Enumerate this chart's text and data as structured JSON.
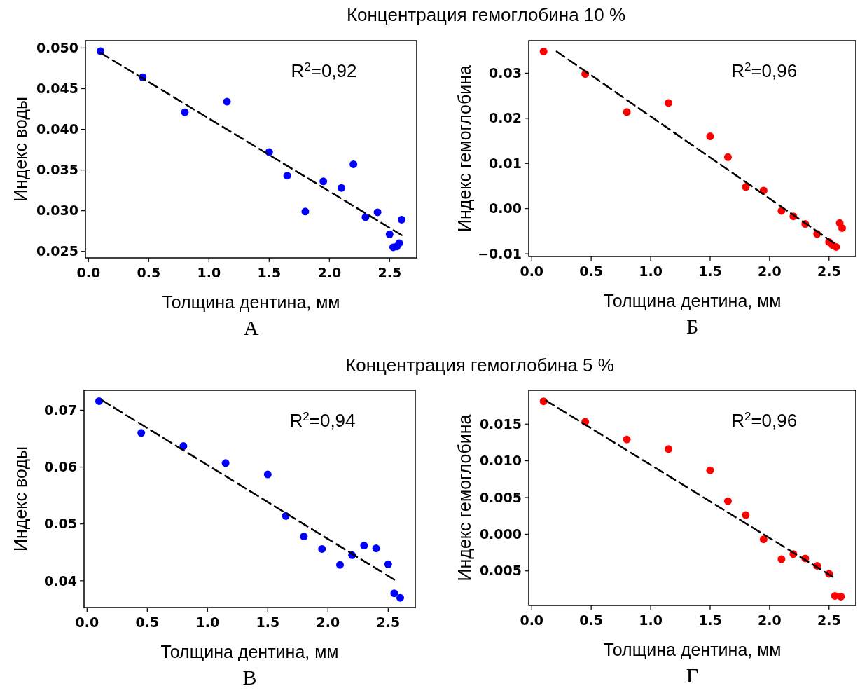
{
  "chart_data": [
    {
      "type": "scatter",
      "title": "Концентрация гемоглобина 10 %",
      "xlabel": "Толщина дентина, мм",
      "ylabel": "Индекс воды",
      "annotations": [
        "R$^{2}$=0,92",
        "А"
      ],
      "xlim": [
        -0.025,
        2.725
      ],
      "ylim": [
        0.0242,
        0.0509
      ],
      "xticks": [
        {
          "value": 0,
          "label": "0.0"
        },
        0.5,
        {
          "value": 1,
          "label": "1.0"
        },
        1.5,
        {
          "value": 2,
          "label": "2.0"
        },
        2.5
      ],
      "yticks": [
        {
          "value": 0.025,
          "label": "0.025"
        },
        {
          "value": 0.03,
          "label": "0.030"
        },
        0.035,
        {
          "value": 0.04,
          "label": "0.040"
        },
        0.045,
        {
          "value": 0.05,
          "label": "0.050"
        }
      ],
      "marker": "circle",
      "series": [
        {
          "color": "#0000ff",
          "x": [
            0.1,
            0.45,
            0.8,
            1.15,
            1.5,
            1.65,
            1.8,
            1.95,
            2.1,
            2.2,
            2.3,
            2.4,
            2.5,
            2.53,
            2.56,
            2.58,
            2.6
          ],
          "values": [
            0.0496,
            0.0464,
            0.0421,
            0.0434,
            0.0372,
            0.0343,
            0.0299,
            0.0336,
            0.0328,
            0.0357,
            0.0292,
            0.0298,
            0.0271,
            0.0255,
            0.0256,
            0.026,
            0.0289
          ]
        },
        {
          "type": "line",
          "color": "#000000",
          "line_style": "dashed",
          "marker": "none",
          "x": [
            0.1,
            2.6
          ],
          "values": [
            0.0494,
            0.027
          ]
        }
      ]
    },
    {
      "type": "scatter",
      "xlabel": "Толщина дентина, мм",
      "ylabel": "Индекс гемоглобина",
      "annotations": [
        "R$^{2}$=0,96",
        "Б"
      ],
      "xlim": [
        -0.025,
        2.725
      ],
      "ylim": [
        -0.0106,
        0.0372
      ],
      "xticks": [
        {
          "value": 0,
          "label": "0.0"
        },
        0.5,
        {
          "value": 1,
          "label": "1.0"
        },
        1.5,
        {
          "value": 2,
          "label": "2.0"
        },
        2.5
      ],
      "yticks": [
        {
          "value": -0.01,
          "label": "−0.01"
        },
        {
          "value": 0,
          "label": "0.00"
        },
        0.01,
        0.02,
        0.03
      ],
      "marker": "circle",
      "series": [
        {
          "color": "#ff0000",
          "x": [
            0.1,
            0.45,
            0.8,
            1.15,
            1.5,
            1.65,
            1.8,
            1.95,
            2.1,
            2.2,
            2.3,
            2.4,
            2.5,
            2.53,
            2.56,
            2.59,
            2.61
          ],
          "values": [
            0.0348,
            0.0298,
            0.0214,
            0.0234,
            0.016,
            0.0114,
            0.0048,
            0.004,
            -0.0005,
            -0.0017,
            -0.0034,
            -0.0056,
            -0.0074,
            -0.0081,
            -0.0085,
            -0.0032,
            -0.0043
          ]
        },
        {
          "type": "line",
          "color": "#000000",
          "line_style": "dashed",
          "marker": "none",
          "x": [
            0.21,
            2.54
          ],
          "values": [
            0.0348,
            -0.0076
          ]
        }
      ]
    },
    {
      "type": "scatter",
      "title": "Концентрация гемоглобина 5 %",
      "xlabel": "Толщина дентина, мм",
      "ylabel": "Индекс воды",
      "annotations": [
        "R$^{2}$=0,94",
        "В"
      ],
      "xlim": [
        -0.025,
        2.725
      ],
      "ylim": [
        0.0353,
        0.0735
      ],
      "xticks": [
        {
          "value": 0,
          "label": "0.0"
        },
        0.5,
        {
          "value": 1,
          "label": "1.0"
        },
        1.5,
        {
          "value": 2,
          "label": "2.0"
        },
        2.5
      ],
      "yticks": [
        0.04,
        0.05,
        0.06,
        0.07
      ],
      "marker": "circle",
      "series": [
        {
          "color": "#0000ff",
          "x": [
            0.1,
            0.45,
            0.8,
            1.15,
            1.5,
            1.65,
            1.8,
            1.95,
            2.1,
            2.2,
            2.3,
            2.4,
            2.5,
            2.55,
            2.6
          ],
          "values": [
            0.0716,
            0.066,
            0.0637,
            0.0607,
            0.0587,
            0.0514,
            0.0478,
            0.0456,
            0.0428,
            0.0445,
            0.0462,
            0.0457,
            0.0429,
            0.0378,
            0.037
          ]
        },
        {
          "type": "line",
          "color": "#000000",
          "line_style": "dashed",
          "marker": "none",
          "x": [
            0.12,
            2.55
          ],
          "values": [
            0.0718,
            0.0402
          ]
        }
      ]
    },
    {
      "type": "scatter",
      "xlabel": "Толщина дентина, мм",
      "ylabel": "Индекс гемоглобина",
      "annotations": [
        "R$^{2}$=0,96",
        "Г"
      ],
      "xlim": [
        -0.025,
        2.725
      ],
      "ylim": [
        -0.0097,
        0.0196
      ],
      "xticks": [
        {
          "value": 0,
          "label": "0.0"
        },
        0.5,
        {
          "value": 1,
          "label": "1.0"
        },
        1.5,
        {
          "value": 2,
          "label": "2.0"
        },
        2.5
      ],
      "yticks": [
        {
          "value": -0.005,
          "label": "0.005"
        },
        {
          "value": 0,
          "label": "0.000"
        },
        {
          "value": 0.005,
          "label": "0.005"
        },
        {
          "value": 0.01,
          "label": "0.010"
        },
        0.015
      ],
      "marker": "circle",
      "series": [
        {
          "color": "#ff0000",
          "x": [
            0.1,
            0.45,
            0.8,
            1.15,
            1.5,
            1.65,
            1.8,
            1.95,
            2.1,
            2.2,
            2.3,
            2.4,
            2.5,
            2.55,
            2.6
          ],
          "values": [
            0.0181,
            0.0153,
            0.0129,
            0.0116,
            0.0087,
            0.0045,
            0.0026,
            -0.0007,
            -0.0034,
            -0.0027,
            -0.0033,
            -0.0043,
            -0.0054,
            -0.0084,
            -0.0085
          ]
        },
        {
          "type": "line",
          "color": "#000000",
          "line_style": "dashed",
          "marker": "none",
          "x": [
            0.12,
            2.53
          ],
          "values": [
            0.0182,
            -0.0058
          ]
        }
      ]
    }
  ]
}
